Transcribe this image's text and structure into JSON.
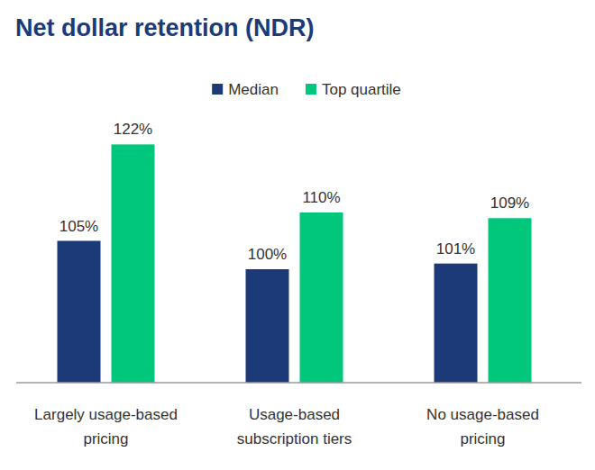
{
  "chart_data": {
    "type": "bar",
    "title": "Net dollar retention (NDR)",
    "categories": [
      "Largely usage-based pricing",
      "Usage-based subscription tiers",
      "No usage-based pricing"
    ],
    "series": [
      {
        "name": "Median",
        "color": "#1c3a78",
        "values": [
          105,
          100,
          101
        ],
        "value_labels": [
          "105%",
          "100%",
          "101%"
        ]
      },
      {
        "name": "Top quartile",
        "color": "#00c77b",
        "values": [
          122,
          110,
          109
        ],
        "value_labels": [
          "122%",
          "110%",
          "109%"
        ]
      }
    ],
    "ylim": [
      80,
      125
    ],
    "grid": false,
    "legend": "top",
    "data_labels": true,
    "tick_labels": "x"
  }
}
